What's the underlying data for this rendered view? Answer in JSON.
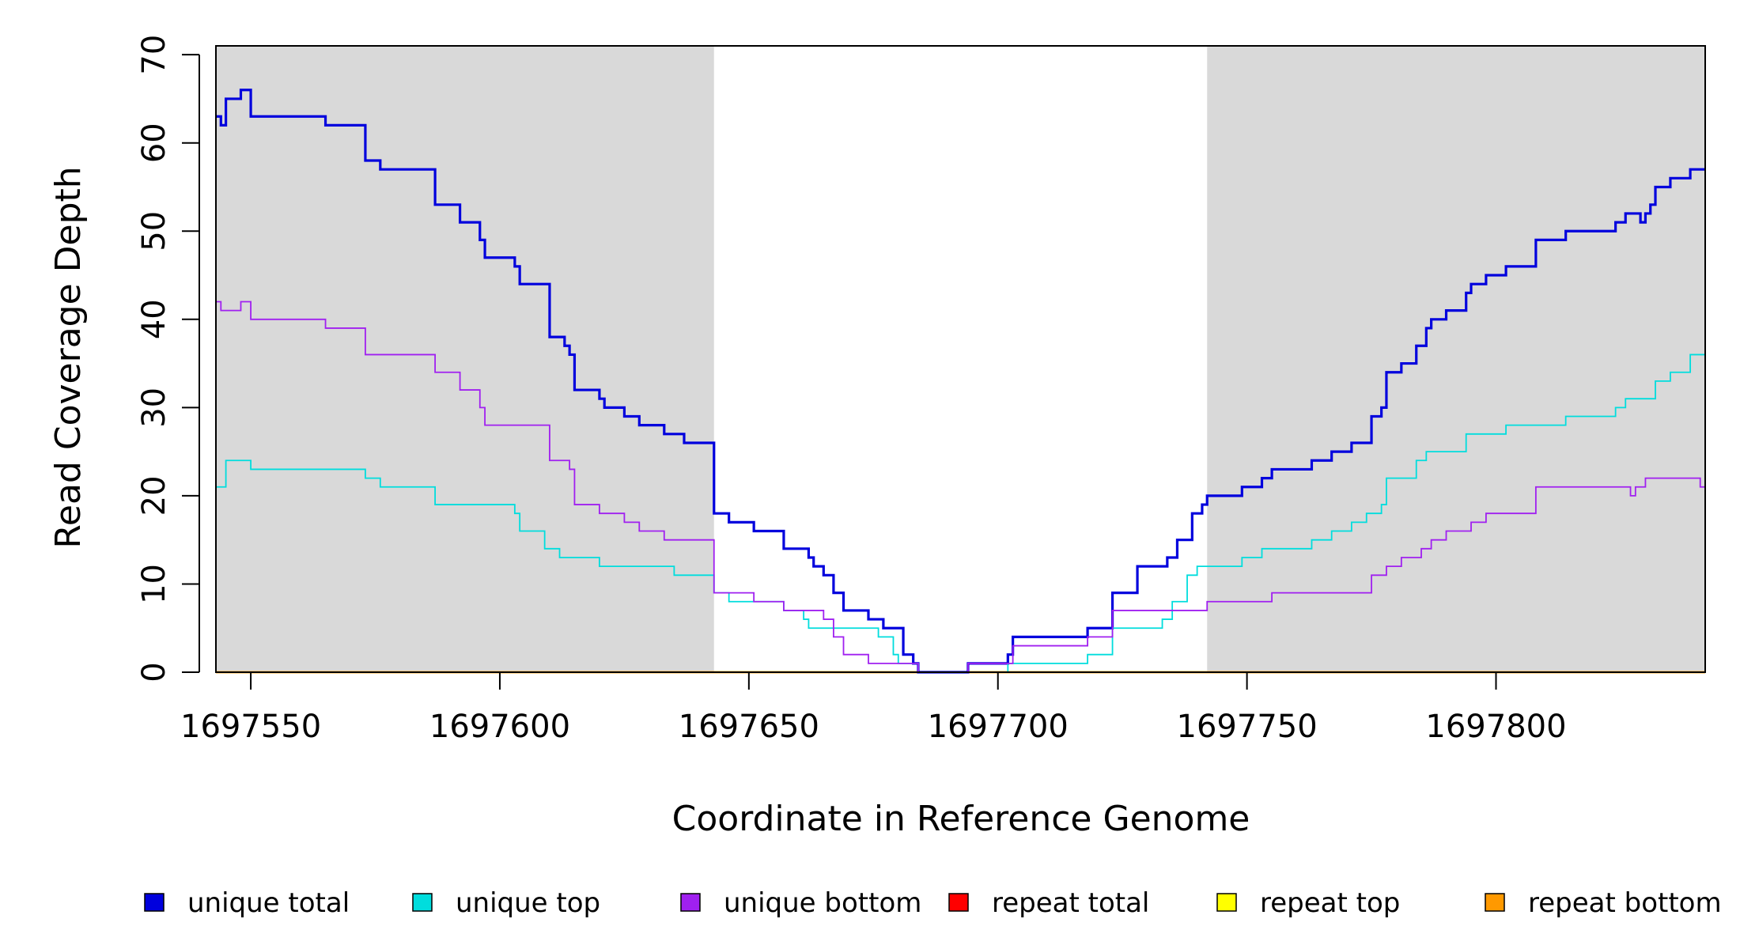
{
  "chart_data": {
    "type": "line",
    "xlabel": "Coordinate in Reference Genome",
    "ylabel": "Read Coverage Depth",
    "xlim": [
      1697543,
      1697842
    ],
    "ylim": [
      0,
      70
    ],
    "x_ticks": [
      1697550,
      1697600,
      1697650,
      1697700,
      1697750,
      1697800
    ],
    "x_tick_labels": [
      "1697550",
      "1697600",
      "1697650",
      "1697700",
      "1697750",
      "1697800"
    ],
    "y_ticks": [
      0,
      10,
      20,
      30,
      40,
      50,
      60,
      70
    ],
    "y_tick_labels": [
      "0",
      "10",
      "20",
      "30",
      "40",
      "50",
      "60",
      "70"
    ],
    "shaded_regions": [
      {
        "from": 1697543,
        "to": 1697643,
        "color": "#d9d9d9"
      },
      {
        "from": 1697742,
        "to": 1697842,
        "color": "#d9d9d9"
      }
    ],
    "series": [
      {
        "name": "unique total",
        "color": "#0000dd",
        "style": "step",
        "points": [
          [
            1697543,
            63
          ],
          [
            1697544,
            62
          ],
          [
            1697545,
            65
          ],
          [
            1697548,
            66
          ],
          [
            1697550,
            63
          ],
          [
            1697565,
            62
          ],
          [
            1697573,
            58
          ],
          [
            1697576,
            57
          ],
          [
            1697587,
            53
          ],
          [
            1697592,
            51
          ],
          [
            1697596,
            49
          ],
          [
            1697597,
            47
          ],
          [
            1697603,
            46
          ],
          [
            1697604,
            44
          ],
          [
            1697610,
            38
          ],
          [
            1697613,
            37
          ],
          [
            1697614,
            36
          ],
          [
            1697615,
            32
          ],
          [
            1697620,
            31
          ],
          [
            1697621,
            30
          ],
          [
            1697625,
            29
          ],
          [
            1697628,
            28
          ],
          [
            1697633,
            27
          ],
          [
            1697637,
            26
          ],
          [
            1697643,
            18
          ],
          [
            1697646,
            17
          ],
          [
            1697651,
            16
          ],
          [
            1697657,
            14
          ],
          [
            1697662,
            13
          ],
          [
            1697663,
            12
          ],
          [
            1697665,
            11
          ],
          [
            1697667,
            9
          ],
          [
            1697669,
            7
          ],
          [
            1697674,
            6
          ],
          [
            1697677,
            5
          ],
          [
            1697681,
            2
          ],
          [
            1697683,
            1
          ],
          [
            1697684,
            0
          ],
          [
            1697694,
            1
          ],
          [
            1697702,
            2
          ],
          [
            1697703,
            4
          ],
          [
            1697718,
            5
          ],
          [
            1697723,
            9
          ],
          [
            1697728,
            12
          ],
          [
            1697734,
            13
          ],
          [
            1697736,
            15
          ],
          [
            1697739,
            18
          ],
          [
            1697741,
            19
          ],
          [
            1697742,
            20
          ],
          [
            1697749,
            21
          ],
          [
            1697753,
            22
          ],
          [
            1697755,
            23
          ],
          [
            1697763,
            24
          ],
          [
            1697767,
            25
          ],
          [
            1697771,
            26
          ],
          [
            1697775,
            29
          ],
          [
            1697777,
            30
          ],
          [
            1697778,
            34
          ],
          [
            1697781,
            35
          ],
          [
            1697784,
            37
          ],
          [
            1697786,
            39
          ],
          [
            1697787,
            40
          ],
          [
            1697790,
            41
          ],
          [
            1697794,
            43
          ],
          [
            1697795,
            44
          ],
          [
            1697798,
            45
          ],
          [
            1697802,
            46
          ],
          [
            1697808,
            49
          ],
          [
            1697814,
            50
          ],
          [
            1697824,
            51
          ],
          [
            1697826,
            52
          ],
          [
            1697829,
            51
          ],
          [
            1697830,
            52
          ],
          [
            1697831,
            53
          ],
          [
            1697832,
            55
          ],
          [
            1697835,
            56
          ],
          [
            1697839,
            57
          ],
          [
            1697842,
            57
          ]
        ]
      },
      {
        "name": "unique top",
        "color": "#00dddd",
        "style": "step",
        "points": [
          [
            1697543,
            21
          ],
          [
            1697545,
            24
          ],
          [
            1697550,
            23
          ],
          [
            1697566,
            23
          ],
          [
            1697573,
            22
          ],
          [
            1697576,
            21
          ],
          [
            1697587,
            19
          ],
          [
            1697603,
            18
          ],
          [
            1697604,
            16
          ],
          [
            1697609,
            14
          ],
          [
            1697612,
            13
          ],
          [
            1697620,
            12
          ],
          [
            1697635,
            11
          ],
          [
            1697643,
            9
          ],
          [
            1697646,
            8
          ],
          [
            1697652,
            8
          ],
          [
            1697657,
            7
          ],
          [
            1697661,
            6
          ],
          [
            1697662,
            5
          ],
          [
            1697670,
            5
          ],
          [
            1697676,
            4
          ],
          [
            1697679,
            2
          ],
          [
            1697680,
            1
          ],
          [
            1697684,
            0
          ],
          [
            1697702,
            1
          ],
          [
            1697718,
            2
          ],
          [
            1697723,
            5
          ],
          [
            1697730,
            5
          ],
          [
            1697733,
            6
          ],
          [
            1697735,
            8
          ],
          [
            1697738,
            11
          ],
          [
            1697740,
            12
          ],
          [
            1697742,
            12
          ],
          [
            1697749,
            13
          ],
          [
            1697753,
            14
          ],
          [
            1697763,
            15
          ],
          [
            1697767,
            16
          ],
          [
            1697771,
            17
          ],
          [
            1697774,
            18
          ],
          [
            1697777,
            19
          ],
          [
            1697778,
            22
          ],
          [
            1697784,
            24
          ],
          [
            1697786,
            25
          ],
          [
            1697794,
            27
          ],
          [
            1697802,
            28
          ],
          [
            1697814,
            29
          ],
          [
            1697824,
            30
          ],
          [
            1697826,
            31
          ],
          [
            1697832,
            33
          ],
          [
            1697835,
            34
          ],
          [
            1697839,
            36
          ],
          [
            1697842,
            36
          ]
        ]
      },
      {
        "name": "unique bottom",
        "color": "#a020f0",
        "style": "step",
        "points": [
          [
            1697543,
            42
          ],
          [
            1697544,
            41
          ],
          [
            1697548,
            42
          ],
          [
            1697550,
            40
          ],
          [
            1697565,
            39
          ],
          [
            1697573,
            36
          ],
          [
            1697587,
            34
          ],
          [
            1697592,
            32
          ],
          [
            1697596,
            30
          ],
          [
            1697597,
            28
          ],
          [
            1697610,
            24
          ],
          [
            1697614,
            23
          ],
          [
            1697615,
            19
          ],
          [
            1697620,
            18
          ],
          [
            1697625,
            17
          ],
          [
            1697628,
            16
          ],
          [
            1697633,
            15
          ],
          [
            1697643,
            9
          ],
          [
            1697651,
            8
          ],
          [
            1697657,
            7
          ],
          [
            1697665,
            6
          ],
          [
            1697667,
            4
          ],
          [
            1697669,
            2
          ],
          [
            1697674,
            1
          ],
          [
            1697684,
            0
          ],
          [
            1697694,
            1
          ],
          [
            1697703,
            3
          ],
          [
            1697718,
            4
          ],
          [
            1697723,
            7
          ],
          [
            1697735,
            7
          ],
          [
            1697742,
            8
          ],
          [
            1697755,
            9
          ],
          [
            1697775,
            11
          ],
          [
            1697778,
            12
          ],
          [
            1697781,
            13
          ],
          [
            1697785,
            14
          ],
          [
            1697787,
            15
          ],
          [
            1697790,
            16
          ],
          [
            1697795,
            17
          ],
          [
            1697798,
            18
          ],
          [
            1697808,
            21
          ],
          [
            1697827,
            20
          ],
          [
            1697828,
            21
          ],
          [
            1697830,
            22
          ],
          [
            1697841,
            21
          ],
          [
            1697842,
            21
          ]
        ]
      },
      {
        "name": "repeat total",
        "color": "#ff0000",
        "style": "step",
        "points": [
          [
            1697543,
            0
          ],
          [
            1697842,
            0
          ]
        ]
      },
      {
        "name": "repeat top",
        "color": "#ffff00",
        "style": "step",
        "points": [
          [
            1697543,
            0
          ],
          [
            1697842,
            0
          ]
        ]
      },
      {
        "name": "repeat bottom",
        "color": "#ff9900",
        "style": "step",
        "points": [
          [
            1697543,
            0
          ],
          [
            1697842,
            0
          ]
        ]
      }
    ],
    "legend_position": "bottom",
    "grid": false
  }
}
